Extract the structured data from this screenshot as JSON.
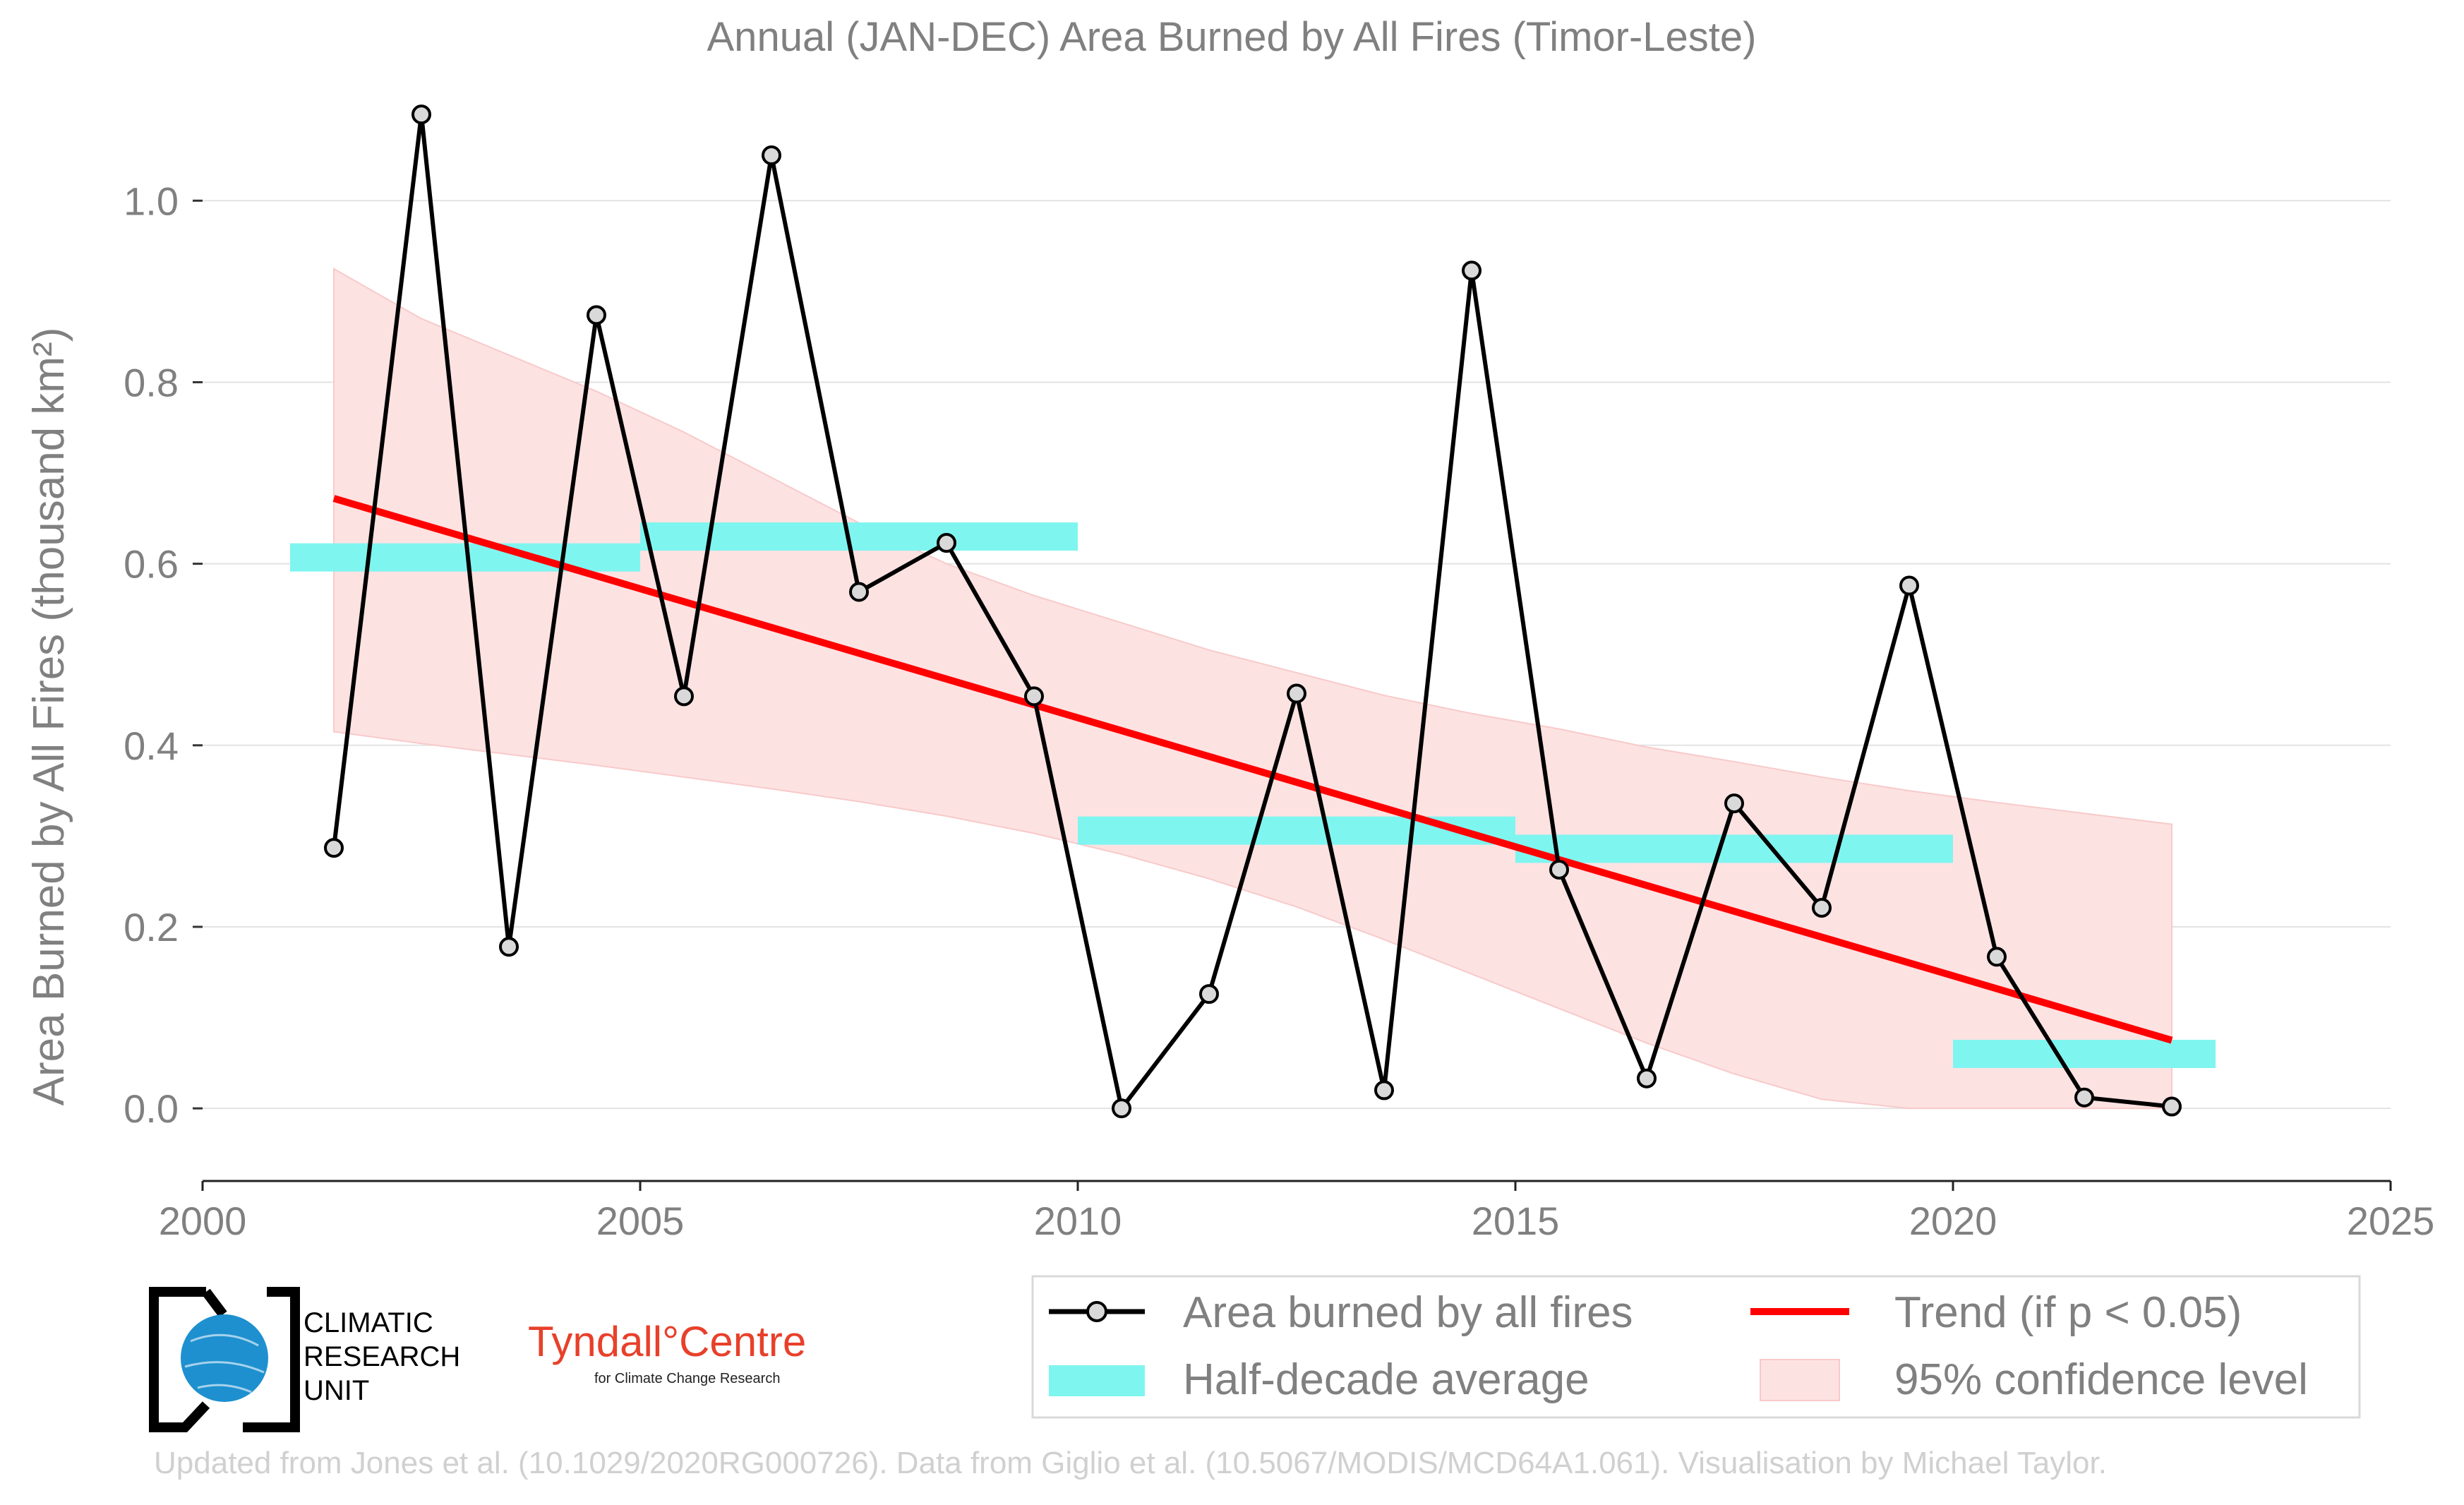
{
  "chart_data": {
    "type": "line",
    "title": "Annual (JAN-DEC) Area Burned by All Fires (Timor-Leste)",
    "ylabel": "Area Burned by All Fires (thousand km²)",
    "xlabel": "",
    "xlim": [
      2000,
      2025
    ],
    "ylim": [
      -0.08,
      1.12
    ],
    "xticks": [
      2000,
      2005,
      2010,
      2015,
      2020,
      2025
    ],
    "yticks": [
      0.0,
      0.2,
      0.4,
      0.6,
      0.8,
      1.0
    ],
    "ytick_labels": [
      "0.0",
      "0.2",
      "0.4",
      "0.6",
      "0.8",
      "1.0"
    ],
    "grid": "horizontal",
    "series": [
      {
        "name": "Area burned by all fires",
        "color": "#000000",
        "x": [
          2001.5,
          2002.5,
          2003.5,
          2004.5,
          2005.5,
          2006.5,
          2007.5,
          2008.5,
          2009.5,
          2010.5,
          2011.5,
          2012.5,
          2013.5,
          2014.5,
          2015.5,
          2016.5,
          2017.5,
          2018.5,
          2019.5,
          2020.5,
          2021.5,
          2022.5
        ],
        "values": [
          0.287,
          1.095,
          0.178,
          0.874,
          0.454,
          1.05,
          0.569,
          0.623,
          0.454,
          0.0,
          0.126,
          0.457,
          0.02,
          0.923,
          0.263,
          0.033,
          0.336,
          0.221,
          0.576,
          0.167,
          0.012,
          0.002
        ]
      }
    ],
    "half_decade_average": {
      "name": "Half-decade average",
      "color": "#7ff5f0",
      "segments": [
        {
          "x0": 2001,
          "x1": 2005,
          "value": 0.607
        },
        {
          "x0": 2005,
          "x1": 2010,
          "value": 0.63
        },
        {
          "x0": 2010,
          "x1": 2015,
          "value": 0.306
        },
        {
          "x0": 2015,
          "x1": 2020,
          "value": 0.286
        },
        {
          "x0": 2020,
          "x1": 2023,
          "value": 0.06
        }
      ]
    },
    "trend": {
      "name": "Trend (if p < 0.05)",
      "color": "#ff0000",
      "x": [
        2001.5,
        2022.5
      ],
      "values": [
        0.672,
        0.075
      ]
    },
    "confidence_band": {
      "name": "95% confidence level",
      "color": "#fde2e2",
      "x": [
        2001.5,
        2002.5,
        2003.5,
        2004.5,
        2005.5,
        2006.5,
        2007.5,
        2008.5,
        2009.5,
        2010.5,
        2011.5,
        2012.5,
        2013.5,
        2014.5,
        2015.5,
        2016.5,
        2017.5,
        2018.5,
        2019.5,
        2020.5,
        2021.5,
        2022.5
      ],
      "upper": [
        0.925,
        0.87,
        0.83,
        0.79,
        0.745,
        0.695,
        0.645,
        0.6,
        0.565,
        0.535,
        0.505,
        0.48,
        0.455,
        0.435,
        0.418,
        0.398,
        0.382,
        0.365,
        0.35,
        0.337,
        0.325,
        0.313
      ],
      "lower": [
        0.415,
        0.402,
        0.39,
        0.378,
        0.365,
        0.352,
        0.338,
        0.322,
        0.303,
        0.28,
        0.253,
        0.222,
        0.186,
        0.148,
        0.11,
        0.072,
        0.038,
        0.01,
        0.0,
        0.0,
        0.0,
        0.0
      ]
    },
    "legend": {
      "placement": "bottom-right",
      "entries": [
        "Area burned by all fires",
        "Trend (if p < 0.05)",
        "Half-decade average",
        "95% confidence level"
      ]
    }
  },
  "logos": {
    "cru_line1": "CLIMATIC",
    "cru_line2": "RESEARCH",
    "cru_line3": "UNIT",
    "tyndall_name": "Tyndall°Centre",
    "tyndall_sub": "for Climate Change Research"
  },
  "credit": "Updated from Jones et al. (10.1029/2020RG000726). Data from Giglio et al. (10.5067/MODIS/MCD64A1.061). Visualisation by Michael Taylor."
}
